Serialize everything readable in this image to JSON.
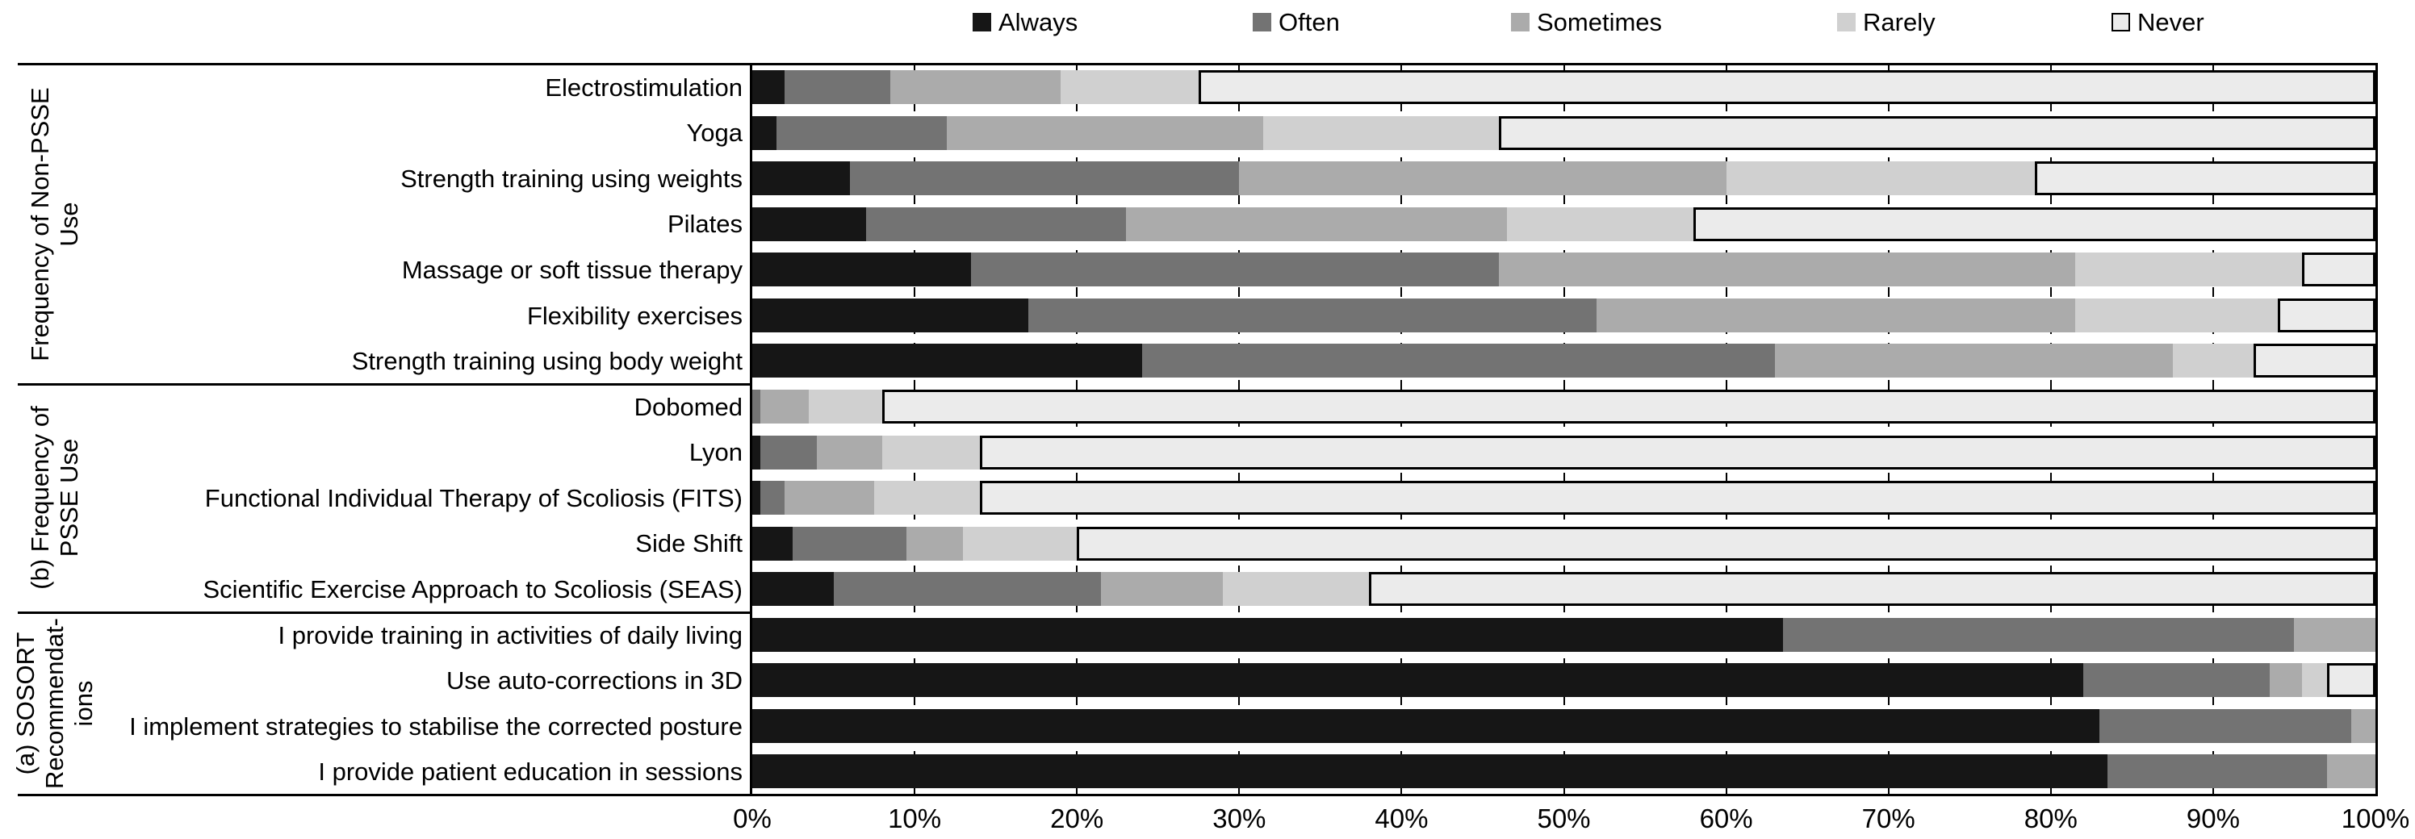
{
  "legend": {
    "items": [
      {
        "label": "Always",
        "color": "#161616"
      },
      {
        "label": "Often",
        "color": "#737373"
      },
      {
        "label": "Sometimes",
        "color": "#ababab"
      },
      {
        "label": "Rarely",
        "color": "#d0d0d0"
      },
      {
        "label": "Never",
        "color": "#ebebeb",
        "border": "#000000"
      }
    ]
  },
  "chart_data": {
    "type": "bar",
    "stacked": true,
    "orientation": "horizontal",
    "unit": "percent",
    "xlim": [
      0,
      100
    ],
    "x_ticks": [
      "0%",
      "10%",
      "20%",
      "30%",
      "40%",
      "50%",
      "60%",
      "70%",
      "80%",
      "90%",
      "100%"
    ],
    "grid": {
      "style": "dashed-vertical",
      "every_pct": 10
    },
    "legend_position": "top",
    "series_names": [
      "Always",
      "Often",
      "Sometimes",
      "Rarely",
      "Never"
    ],
    "series_colors": {
      "Always": "#161616",
      "Often": "#737373",
      "Sometimes": "#ababab",
      "Rarely": "#d0d0d0",
      "Never": "#ebebeb"
    },
    "never_border_color": "#000000",
    "groups": [
      {
        "label": "Frequency of Non-PSSE\nUse",
        "rows": [
          {
            "category": "Electrostimulation",
            "values": [
              2,
              6.5,
              10.5,
              8.5,
              72.5
            ]
          },
          {
            "category": "Yoga",
            "values": [
              1.5,
              10.5,
              19.5,
              14.5,
              54
            ]
          },
          {
            "category": "Strength training using weights",
            "values": [
              6,
              24,
              30,
              19,
              21
            ]
          },
          {
            "category": "Pilates",
            "values": [
              7,
              16,
              23.5,
              11.5,
              42
            ]
          },
          {
            "category": "Massage or soft tissue therapy",
            "values": [
              13.5,
              32.5,
              35.5,
              14,
              4.5
            ]
          },
          {
            "category": "Flexibility exercises",
            "values": [
              17,
              35,
              29.5,
              12.5,
              6
            ]
          },
          {
            "category": "Strength training using body weight",
            "values": [
              24,
              39,
              24.5,
              5,
              7.5
            ]
          }
        ]
      },
      {
        "label": "(b) Frequency of\nPSSE Use",
        "rows": [
          {
            "category": "Dobomed",
            "values": [
              0,
              0.5,
              3,
              4.5,
              92
            ]
          },
          {
            "category": "Lyon",
            "values": [
              0.5,
              3.5,
              4,
              6,
              86
            ]
          },
          {
            "category": "Functional Individual Therapy of Scoliosis (FITS)",
            "values": [
              0.5,
              1.5,
              5.5,
              6.5,
              86
            ]
          },
          {
            "category": "Side Shift",
            "values": [
              2.5,
              7,
              3.5,
              7,
              80
            ]
          },
          {
            "category": "Scientific Exercise Approach to Scoliosis (SEAS)",
            "values": [
              5,
              16.5,
              7.5,
              9,
              62
            ]
          }
        ]
      },
      {
        "label": "(a) SOSORT\nRecommendat-\nions",
        "rows": [
          {
            "category": "I provide training in activities of daily living",
            "values": [
              63.5,
              31.5,
              5,
              0,
              0
            ]
          },
          {
            "category": "Use auto-corrections in 3D",
            "values": [
              82,
              11.5,
              2,
              1.5,
              3
            ]
          },
          {
            "category": "I implement strategies to stabilise the corrected posture",
            "values": [
              83,
              15.5,
              1.5,
              0,
              0
            ]
          },
          {
            "category": "I provide patient education in sessions",
            "values": [
              83.5,
              13.5,
              3,
              0,
              0
            ]
          }
        ]
      }
    ]
  }
}
